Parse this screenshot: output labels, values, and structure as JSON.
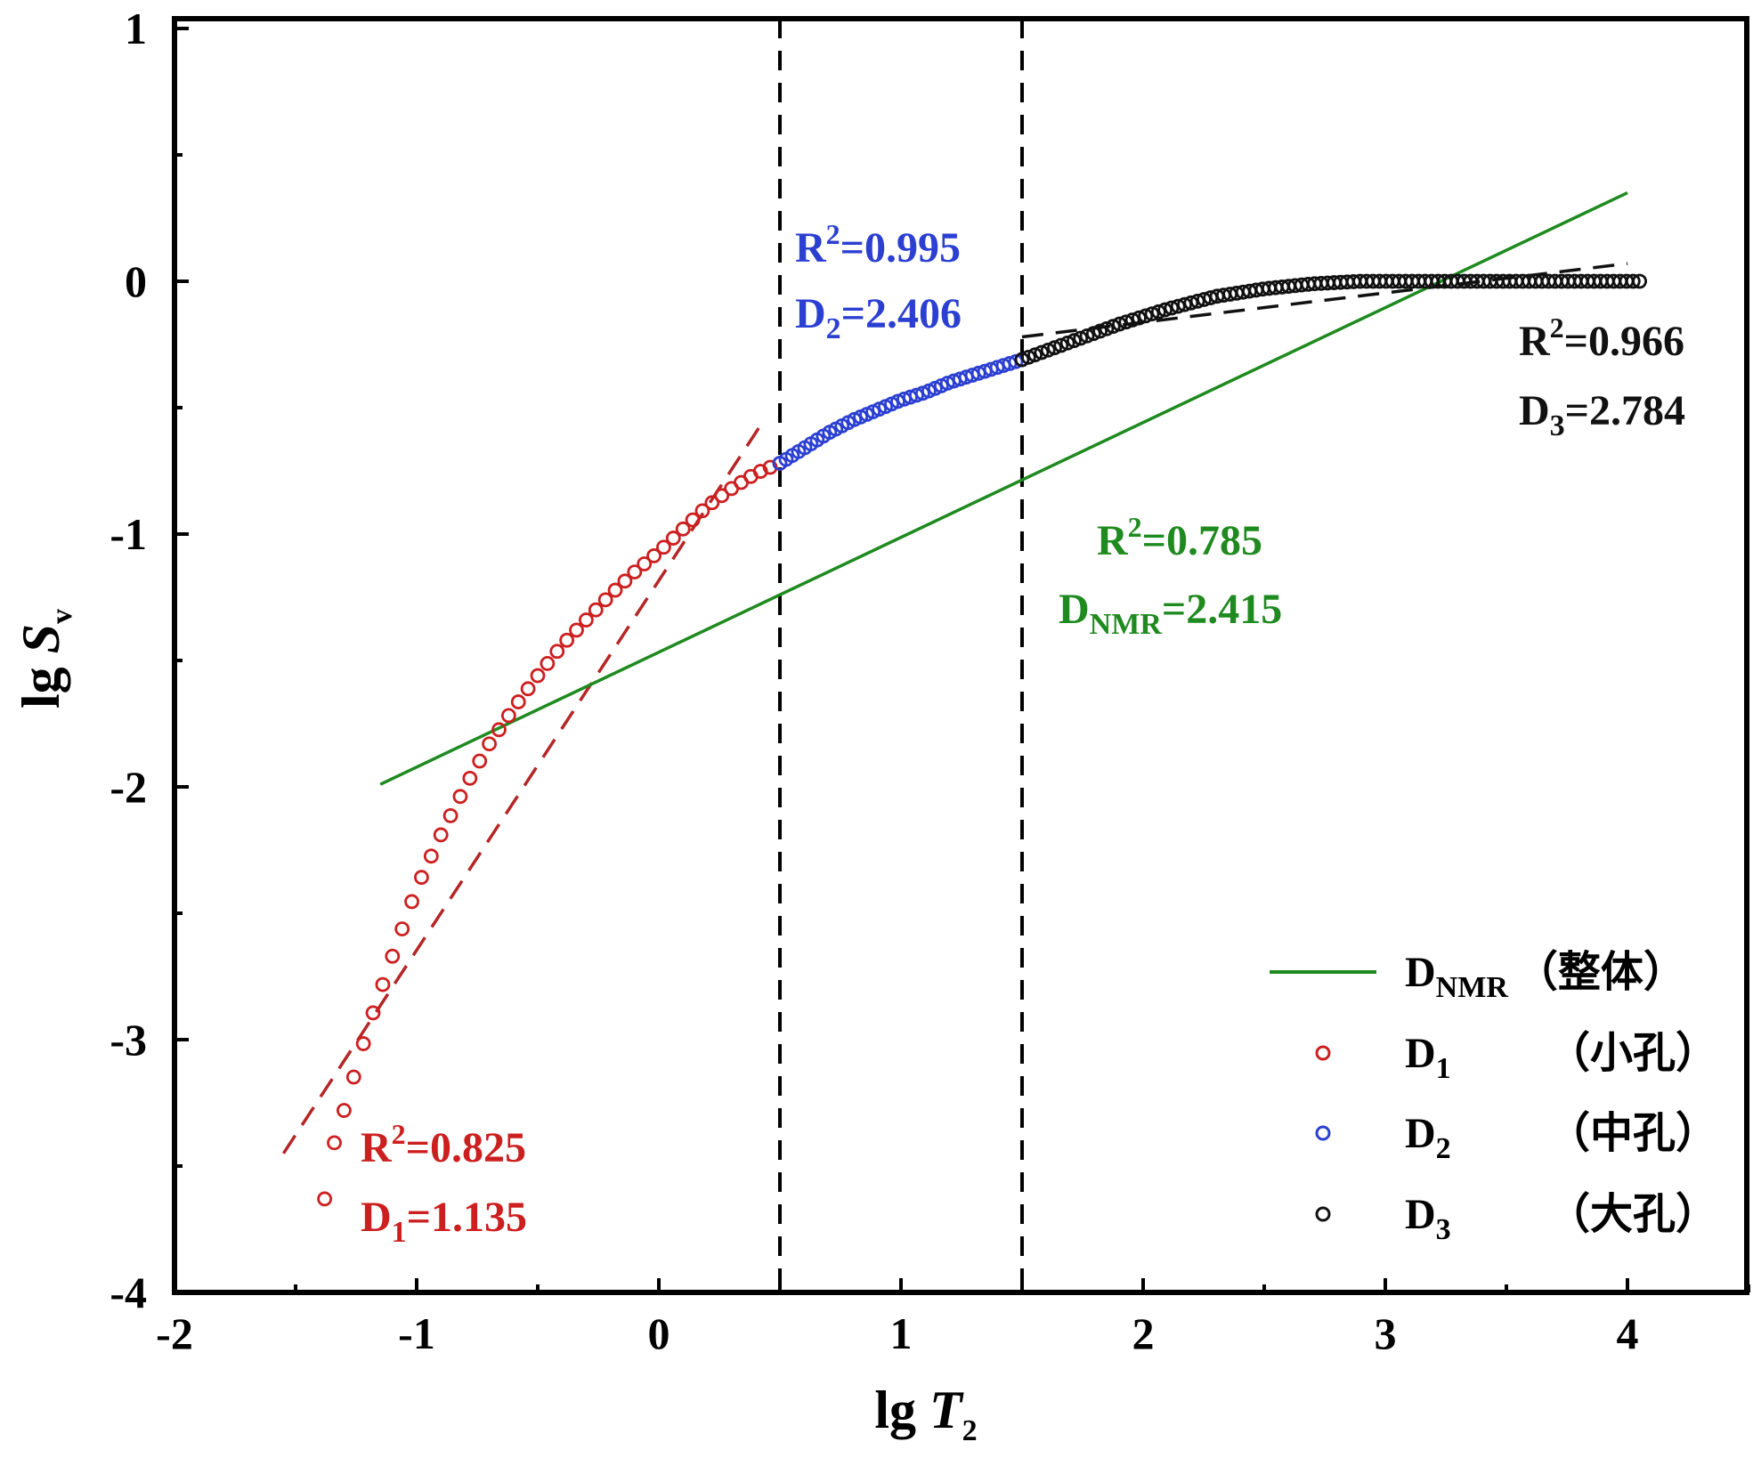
{
  "chart_data": {
    "type": "scatter",
    "xlabel": {
      "prefix": "lg ",
      "var": "T",
      "sub": "2"
    },
    "ylabel": {
      "prefix": "lg ",
      "var": "S",
      "sub": "v"
    },
    "xlim": [
      -2,
      4.5
    ],
    "ylim": [
      -4,
      1
    ],
    "xticks": [
      -2,
      -1,
      0,
      1,
      2,
      3,
      4
    ],
    "yticks": [
      -4,
      -3,
      -2,
      -1,
      0,
      1
    ],
    "xtick_labels": [
      "-2",
      "-1",
      "0",
      "1",
      "2",
      "3",
      "4"
    ],
    "ytick_labels": [
      "-4",
      "-3",
      "-2",
      "-1",
      "0",
      "1"
    ],
    "boundaries": [
      0.5,
      1.5
    ],
    "colors": {
      "d1": "#cc1f1f",
      "d2": "#2b3fd1",
      "d3": "#111111",
      "dnmr": "#1f8a1f",
      "d1_fit": "#b52626",
      "d3_fit": "#111111"
    },
    "segments": {
      "d1": {
        "x_start": -1.38,
        "x_end": 0.5,
        "n": 48,
        "knots": [
          [
            -1.38,
            -3.63
          ],
          [
            -1.35,
            -3.44
          ],
          [
            -1.3,
            -3.28
          ],
          [
            -1.2,
            -2.95
          ],
          [
            -1.1,
            -2.67
          ],
          [
            -1.0,
            -2.4
          ],
          [
            -0.9,
            -2.19
          ],
          [
            -0.8,
            -2.0
          ],
          [
            -0.7,
            -1.83
          ],
          [
            -0.6,
            -1.69
          ],
          [
            -0.5,
            -1.56
          ],
          [
            -0.4,
            -1.44
          ],
          [
            -0.3,
            -1.34
          ],
          [
            -0.2,
            -1.24
          ],
          [
            -0.1,
            -1.15
          ],
          [
            0.0,
            -1.07
          ],
          [
            0.1,
            -0.98
          ],
          [
            0.2,
            -0.89
          ],
          [
            0.3,
            -0.82
          ],
          [
            0.4,
            -0.76
          ],
          [
            0.5,
            -0.72
          ]
        ]
      },
      "d2": {
        "x_start": 0.5,
        "x_end": 1.5,
        "n": 40,
        "knots": [
          [
            0.5,
            -0.72
          ],
          [
            0.6,
            -0.66
          ],
          [
            0.7,
            -0.6
          ],
          [
            0.8,
            -0.55
          ],
          [
            0.9,
            -0.51
          ],
          [
            1.0,
            -0.47
          ],
          [
            1.1,
            -0.44
          ],
          [
            1.2,
            -0.4
          ],
          [
            1.3,
            -0.37
          ],
          [
            1.4,
            -0.34
          ],
          [
            1.5,
            -0.31
          ]
        ]
      },
      "d3": {
        "x_start": 1.5,
        "x_end": 4.05,
        "n": 96,
        "knots": [
          [
            1.5,
            -0.31
          ],
          [
            1.7,
            -0.24
          ],
          [
            1.9,
            -0.17
          ],
          [
            2.1,
            -0.11
          ],
          [
            2.3,
            -0.06
          ],
          [
            2.5,
            -0.03
          ],
          [
            2.7,
            -0.01
          ],
          [
            2.9,
            0.0
          ],
          [
            4.05,
            0.0
          ]
        ]
      }
    },
    "fit_lines": [
      {
        "name": "d1_fit",
        "x": [
          -1.55,
          0.42
        ],
        "y": [
          -3.45,
          -0.57
        ],
        "dashed": true
      },
      {
        "name": "d3_fit",
        "x": [
          1.5,
          4.0
        ],
        "y": [
          -0.22,
          0.07
        ],
        "dashed": true
      },
      {
        "name": "dnmr_fit",
        "x": [
          -1.15,
          4.0
        ],
        "y": [
          -1.99,
          0.35
        ],
        "dashed": false
      }
    ],
    "annotations": [
      {
        "id": "d1",
        "r2": "0.825",
        "d_label": "D",
        "d_sub": "1",
        "d_value": "1.135"
      },
      {
        "id": "d2",
        "r2": "0.995",
        "d_label": "D",
        "d_sub": "2",
        "d_value": "2.406"
      },
      {
        "id": "d3",
        "r2": "0.966",
        "d_label": "D",
        "d_sub": "3",
        "d_value": "2.784"
      },
      {
        "id": "dnmr",
        "r2": "0.785",
        "d_label": "D",
        "d_sub": "NMR",
        "d_value": "2.415"
      }
    ],
    "r2_prefix": "R",
    "r2_sup": "2",
    "equals": "=",
    "legend": {
      "placement": "bottom-right",
      "entries": [
        {
          "id": "dnmr",
          "label": "D",
          "sub": "NMR",
          "note": "（整体）",
          "marker": "line"
        },
        {
          "id": "d1",
          "label": "D",
          "sub": "1",
          "note": "（小孔）",
          "marker": "circle"
        },
        {
          "id": "d2",
          "label": "D",
          "sub": "2",
          "note": "（中孔）",
          "marker": "circle"
        },
        {
          "id": "d3",
          "label": "D",
          "sub": "3",
          "note": "（大孔）",
          "marker": "circle"
        }
      ]
    }
  }
}
